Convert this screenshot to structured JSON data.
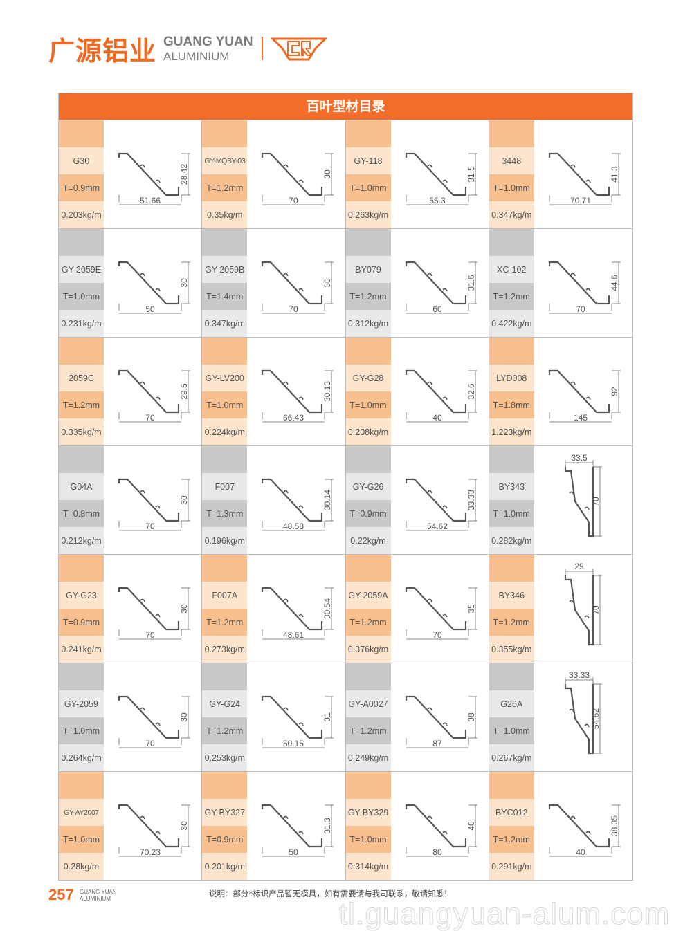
{
  "logo": {
    "cn": "广源铝业",
    "en1": "GUANG YUAN",
    "en2": "ALUMINIUM",
    "mark": "CR"
  },
  "title": "百叶型材目录",
  "colors": {
    "accent": "#f26c2a",
    "orange_light": "#f9c08f",
    "orange_pale": "#fde5cd",
    "grey": "#c9c9c9",
    "grey_pale": "#e9e9e9"
  },
  "rows": [
    {
      "tone": "orange",
      "items": [
        {
          "name": "G30",
          "t": "T=0.9mm",
          "w": "0.203kg/m",
          "dw": "51.66",
          "dh": "28.42"
        },
        {
          "name": "GY-MQBY-03",
          "t": "T=1.2mm",
          "w": "0.35kg/m",
          "dw": "70",
          "dh": "30"
        },
        {
          "name": "GY-118",
          "t": "T=1.0mm",
          "w": "0.263kg/m",
          "dw": "55.3",
          "dh": "31.5"
        },
        {
          "name": "3448",
          "t": "T=1.0mm",
          "w": "0.347kg/m",
          "dw": "70.71",
          "dh": "41.3"
        }
      ]
    },
    {
      "tone": "grey",
      "items": [
        {
          "name": "GY-2059E",
          "t": "T=1.0mm",
          "w": "0.231kg/m",
          "dw": "50",
          "dh": "30"
        },
        {
          "name": "GY-2059B",
          "t": "T=1.4mm",
          "w": "0.347kg/m",
          "dw": "70",
          "dh": "30"
        },
        {
          "name": "BY079",
          "t": "T=1.2mm",
          "w": "0.312kg/m",
          "dw": "60",
          "dh": "31.6"
        },
        {
          "name": "XC-102",
          "t": "T=1.2mm",
          "w": "0.422kg/m",
          "dw": "70",
          "dh": "44.6"
        }
      ]
    },
    {
      "tone": "orange",
      "items": [
        {
          "name": "2059C",
          "t": "T=1.2mm",
          "w": "0.335kg/m",
          "dw": "70",
          "dh": "29.5"
        },
        {
          "name": "GY-LV200",
          "t": "T=1.0mm",
          "w": "0.224kg/m",
          "dw": "66.43",
          "dh": "30.13"
        },
        {
          "name": "GY-G28",
          "t": "T=1.0mm",
          "w": "0.208kg/m",
          "dw": "40",
          "dh": "32.6"
        },
        {
          "name": "LYD008",
          "t": "T=1.8mm",
          "w": "1.223kg/m",
          "dw": "145",
          "dh": "92"
        }
      ]
    },
    {
      "tone": "grey",
      "items": [
        {
          "name": "G04A",
          "t": "T=0.8mm",
          "w": "0.212kg/m",
          "dw": "70",
          "dh": "30"
        },
        {
          "name": "F007",
          "t": "T=1.3mm",
          "w": "0.196kg/m",
          "dw": "48.58",
          "dh": "30.14"
        },
        {
          "name": "GY-G26",
          "t": "T=0.9mm",
          "w": "0.22kg/m",
          "dw": "54.62",
          "dh": "33.33"
        },
        {
          "name": "BY343",
          "t": "T=1.0mm",
          "w": "0.282kg/m",
          "dw": "33.5",
          "dh": "70"
        }
      ]
    },
    {
      "tone": "orange",
      "items": [
        {
          "name": "GY-G23",
          "t": "T=0.9mm",
          "w": "0.241kg/m",
          "dw": "70",
          "dh": "30"
        },
        {
          "name": "F007A",
          "t": "T=1.2mm",
          "w": "0.273kg/m",
          "dw": "48.61",
          "dh": "30.54"
        },
        {
          "name": "GY-2059A",
          "t": "T=1.2mm",
          "w": "0.376kg/m",
          "dw": "70",
          "dh": "35"
        },
        {
          "name": "BY346",
          "t": "T=1.2mm",
          "w": "0.355kg/m",
          "dw": "29",
          "dh": "70"
        }
      ]
    },
    {
      "tone": "grey",
      "items": [
        {
          "name": "GY-2059",
          "t": "T=1.0mm",
          "w": "0.264kg/m",
          "dw": "70",
          "dh": "30"
        },
        {
          "name": "GY-G24",
          "t": "T=1.2mm",
          "w": "0.253kg/m",
          "dw": "50.15",
          "dh": "31"
        },
        {
          "name": "GY-A0027",
          "t": "T=1.2mm",
          "w": "0.249kg/m",
          "dw": "87",
          "dh": "38"
        },
        {
          "name": "G26A",
          "t": "T=1.0mm",
          "w": "0.267kg/m",
          "dw": "33.33",
          "dh": "54.62"
        }
      ]
    },
    {
      "tone": "orange",
      "items": [
        {
          "name": "GY-AY2007",
          "t": "T=1.0mm",
          "w": "0.28kg/m",
          "dw": "70.23",
          "dh": "30"
        },
        {
          "name": "GY-BY327",
          "t": "T=0.9mm",
          "w": "0.201kg/m",
          "dw": "50",
          "dh": "31.3"
        },
        {
          "name": "GY-BY329",
          "t": "T=1.0mm",
          "w": "0.314kg/m",
          "dw": "80",
          "dh": "40"
        },
        {
          "name": "BYC012",
          "t": "T=1.2mm",
          "w": "0.291kg/m",
          "dw": "40",
          "dh": "38.35"
        }
      ]
    }
  ],
  "footer": {
    "page": "257",
    "brand1": "GUANG YUAN",
    "brand2": "ALUMINIUM",
    "note": "说明：部分*标识产品暂无模具，如有需要请与我司联系，敬请知悉！",
    "watermark": "tl.guangyuan-alum.com"
  }
}
